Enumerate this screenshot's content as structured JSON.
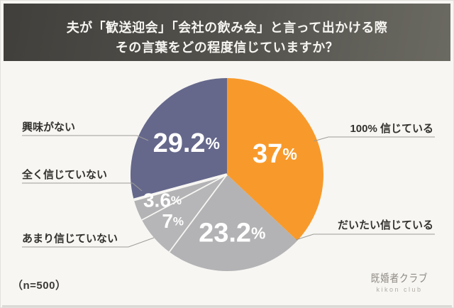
{
  "banner": {
    "title_line1": "夫が「歓送迎会」「会社の飲み会」と言って出かける際",
    "title_line2": "その言葉をどの程度信じていますか？"
  },
  "chart_data": {
    "type": "pie",
    "title": "夫が「歓送迎会」「会社の飲み会」と言って出かける際、その言葉をどの程度信じていますか？",
    "unit": "%",
    "sample_size": 500,
    "start_angle_deg": 0,
    "direction": "clockwise",
    "legend_position": "callouts",
    "slices": [
      {
        "label": "100% 信じている",
        "value": 37,
        "display": "37",
        "color": "#F89A2B",
        "text_color": "#FFFFFF"
      },
      {
        "label": "だいたい信じている",
        "value": 23.2,
        "display": "23.2",
        "color": "#B3B3B5",
        "text_color": "#FFFFFF"
      },
      {
        "label": "あまり信じていない",
        "value": 7,
        "display": "7",
        "color": "#B6B6B8",
        "text_color": "#FFFFFF"
      },
      {
        "label": "全く信じていない",
        "value": 3.6,
        "display": "3.6",
        "color": "#B3B3B5",
        "text_color": "#FFFFFF"
      },
      {
        "label": "興味がない",
        "value": 29.2,
        "display": "29.2",
        "color": "#65688B",
        "text_color": "#FFFFFF"
      }
    ]
  },
  "footer": {
    "sample_note": "（n=500）"
  },
  "logo": {
    "name_jp": "既婚者クラブ",
    "name_en": "kikon club"
  },
  "colors": {
    "background": "#F7F6F3",
    "banner_start": "#413F3B",
    "banner_end": "#6B6A62",
    "accent_orange": "#F89A2B",
    "neutral_gray": "#B3B3B5",
    "accent_purple": "#65688B",
    "leader_line": "#9E9C98"
  }
}
